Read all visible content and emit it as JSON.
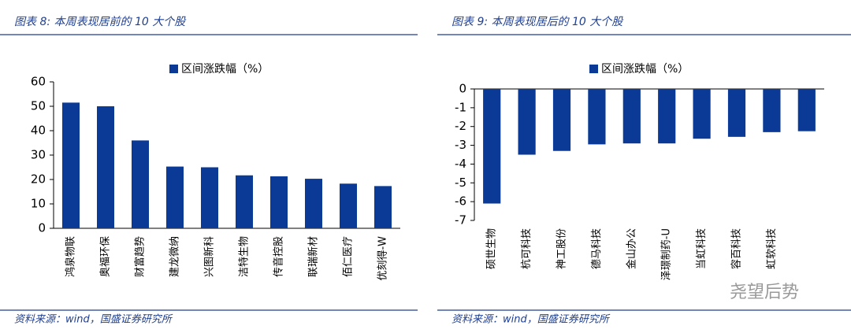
{
  "chart_data": [
    {
      "type": "bar",
      "title": "图表 8:  本周表现居前的 10 大个股",
      "categories": [
        "鸿泉物联",
        "奥福环保",
        "财富趋势",
        "建龙微纳",
        "兴图新科",
        "洁特生物",
        "传音控股",
        "联瑞新材",
        "佰仁医疗",
        "优刻得-W"
      ],
      "series": [
        {
          "name": "区间涨跌幅（%）",
          "color": "#0b3a96",
          "values": [
            51.5,
            50,
            36,
            25.3,
            25,
            21.7,
            21.3,
            20.3,
            18.3,
            17.3
          ]
        }
      ],
      "ylim": [
        0,
        60
      ],
      "yticks": [
        0,
        10,
        20,
        30,
        40,
        50,
        60
      ],
      "source": "资料来源：wind，国盛证券研究所"
    },
    {
      "type": "bar",
      "title": "图表 9:  本周表现居后的 10 大个股",
      "categories": [
        "硕世生物",
        "杭可科技",
        "神工股份",
        "德马科技",
        "金山办公",
        "泽璟制药-U",
        "当虹科技",
        "容百科技",
        "虹软科技",
        null
      ],
      "series": [
        {
          "name": "区间涨跌幅（%）",
          "color": "#0b3a96",
          "values": [
            -6.1,
            -3.5,
            -3.3,
            -2.95,
            -2.9,
            -2.9,
            -2.65,
            -2.55,
            -2.3,
            -2.25
          ]
        }
      ],
      "ylim": [
        -7,
        0
      ],
      "yticks": [
        -7,
        -6,
        -5,
        -4,
        -3,
        -2,
        -1,
        0
      ],
      "source": "资料来源：wind，国盛证券研究所"
    }
  ],
  "watermark": "尧望后势"
}
